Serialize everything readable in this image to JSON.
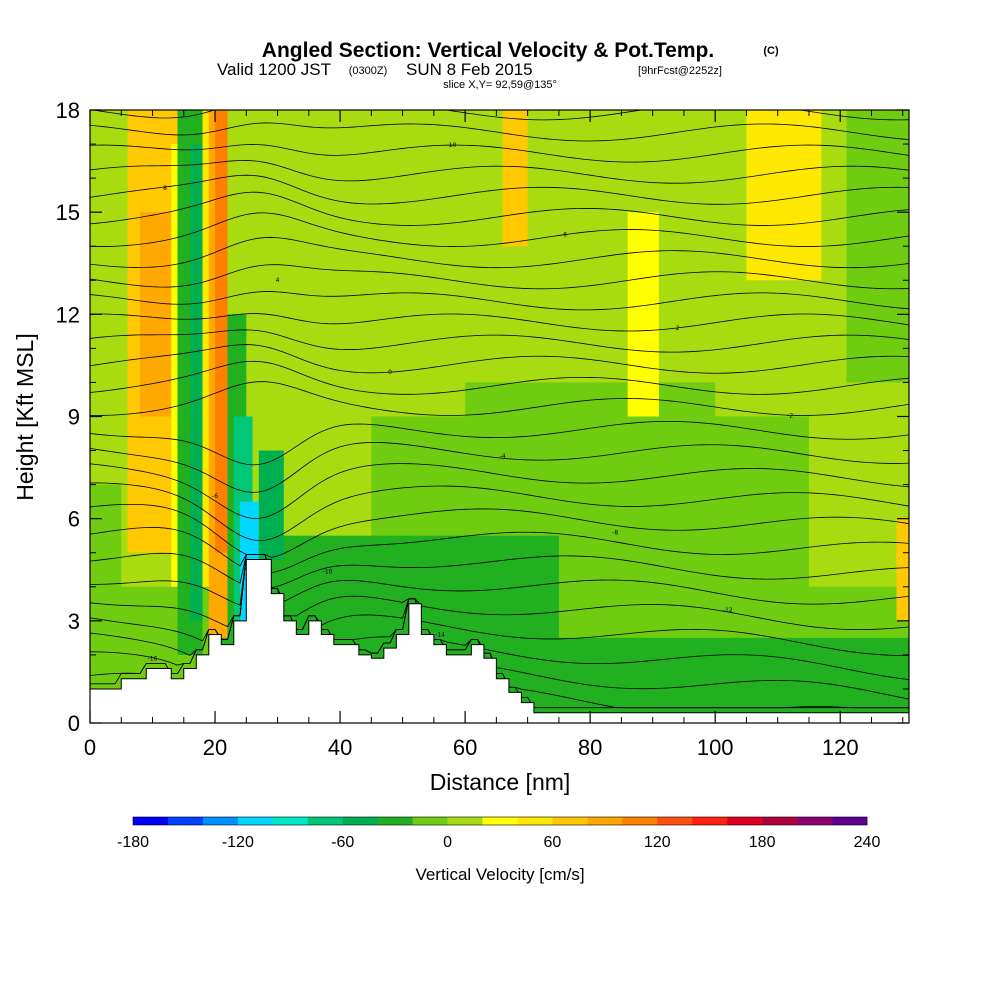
{
  "header": {
    "title": "Angled Section: Vertical Velocity & Pot.Temp.",
    "title_unit": "(C)",
    "valid_prefix": "Valid 1200 JST",
    "valid_utc": "(0300Z)",
    "valid_date": "SUN 8 Feb 2015",
    "forecast": "[9hrFcst@2252z]",
    "slice": "slice X,Y= 92,59@135°"
  },
  "chart_data": {
    "type": "heatmap",
    "xlabel": "Distance [nm]",
    "ylabel": "Height [Kft MSL]",
    "xlim": [
      0,
      131
    ],
    "ylim": [
      0,
      18
    ],
    "xticks": [
      0,
      20,
      40,
      60,
      80,
      100,
      120
    ],
    "xtick_labels": [
      "0",
      "20",
      "40",
      "60",
      "80",
      "100",
      "120"
    ],
    "yticks": [
      0,
      3,
      6,
      9,
      12,
      15,
      18
    ],
    "ytick_labels": [
      "0",
      "3",
      "6",
      "9",
      "12",
      "15",
      "18"
    ],
    "grid": false,
    "colorbar": {
      "title": "Vertical Velocity [cm/s]",
      "min": -180,
      "max": 240,
      "step": 20,
      "tick_values": [
        -180,
        -120,
        -60,
        0,
        60,
        120,
        180,
        240
      ],
      "tick_labels": [
        "-180",
        "-120",
        "-60",
        "0",
        "60",
        "120",
        "180",
        "240"
      ],
      "colors": [
        "#0000ff",
        "#0040ff",
        "#0090ff",
        "#00d8ff",
        "#00e8c8",
        "#00c878",
        "#00b050",
        "#20b020",
        "#70cc10",
        "#a8dc10",
        "#ffff00",
        "#ffe800",
        "#ffc800",
        "#ffa800",
        "#ff8000",
        "#ff5010",
        "#ff2010",
        "#e00020",
        "#b00040",
        "#8c0070",
        "#600090"
      ]
    },
    "terrain_profile": {
      "distance": [
        0,
        5,
        5,
        9,
        9,
        13,
        13,
        15,
        15,
        17,
        17,
        19,
        19,
        21,
        21,
        23,
        23,
        25,
        25,
        27,
        27,
        29,
        29,
        31,
        31,
        33,
        33,
        35,
        35,
        37,
        37,
        39,
        39,
        41,
        41,
        43,
        43,
        45,
        45,
        47,
        47,
        49,
        49,
        51,
        51,
        53,
        53,
        55,
        55,
        57,
        57,
        59,
        59,
        61,
        61,
        63,
        63,
        65,
        65,
        67,
        67,
        69,
        69,
        71,
        71,
        131
      ],
      "height_kft": [
        1.0,
        1.0,
        1.3,
        1.3,
        1.6,
        1.6,
        1.3,
        1.3,
        1.6,
        1.6,
        2.0,
        2.0,
        2.6,
        2.6,
        2.3,
        2.3,
        3.0,
        3.0,
        4.8,
        4.8,
        4.8,
        4.8,
        3.8,
        3.8,
        3.0,
        3.0,
        2.6,
        2.6,
        3.0,
        3.0,
        2.6,
        2.6,
        2.3,
        2.3,
        2.3,
        2.3,
        2.0,
        2.0,
        1.9,
        1.9,
        2.2,
        2.2,
        2.6,
        2.6,
        3.5,
        3.5,
        2.6,
        2.6,
        2.3,
        2.3,
        2.0,
        2.0,
        2.0,
        2.0,
        2.3,
        2.3,
        1.9,
        1.9,
        1.3,
        1.3,
        0.9,
        0.9,
        0.6,
        0.6,
        0.3,
        0.3
      ]
    },
    "vertical_velocity_cells": [
      {
        "x": [
          0,
          131
        ],
        "y": [
          0,
          18
        ],
        "value": 10
      },
      {
        "x": [
          0,
          131
        ],
        "y": [
          0,
          4
        ],
        "value": -10
      },
      {
        "x": [
          45,
          115
        ],
        "y": [
          0,
          9
        ],
        "value": -10
      },
      {
        "x": [
          60,
          100
        ],
        "y": [
          0,
          10
        ],
        "value": -10
      },
      {
        "x": [
          0,
          5
        ],
        "y": [
          0,
          7
        ],
        "value": -10
      },
      {
        "x": [
          20,
          75
        ],
        "y": [
          1.5,
          5.5
        ],
        "value": -30
      },
      {
        "x": [
          65,
          131
        ],
        "y": [
          0,
          2.5
        ],
        "value": -30
      },
      {
        "x": [
          6,
          14
        ],
        "y": [
          5,
          18
        ],
        "value": 60
      },
      {
        "x": [
          8,
          13
        ],
        "y": [
          9,
          15
        ],
        "value": 90
      },
      {
        "x": [
          13,
          16
        ],
        "y": [
          4,
          17
        ],
        "value": 30
      },
      {
        "x": [
          14,
          18
        ],
        "y": [
          2,
          18
        ],
        "value": -30
      },
      {
        "x": [
          16,
          18
        ],
        "y": [
          3,
          17
        ],
        "value": -50
      },
      {
        "x": [
          18,
          20
        ],
        "y": [
          4,
          18
        ],
        "value": 40
      },
      {
        "x": [
          19,
          22
        ],
        "y": [
          2.5,
          18
        ],
        "value": 90
      },
      {
        "x": [
          20,
          22
        ],
        "y": [
          5,
          18
        ],
        "value": 110
      },
      {
        "x": [
          22,
          25
        ],
        "y": [
          3,
          12
        ],
        "value": -30
      },
      {
        "x": [
          23,
          26
        ],
        "y": [
          3,
          9
        ],
        "value": -70
      },
      {
        "x": [
          24,
          27
        ],
        "y": [
          3,
          6.5
        ],
        "value": -110
      },
      {
        "x": [
          25,
          27
        ],
        "y": [
          3.2,
          4.8
        ],
        "value": -150
      },
      {
        "x": [
          27,
          31
        ],
        "y": [
          4.8,
          8
        ],
        "value": -50
      },
      {
        "x": [
          66,
          70
        ],
        "y": [
          14,
          18
        ],
        "value": 60
      },
      {
        "x": [
          105,
          117
        ],
        "y": [
          13,
          18
        ],
        "value": 40
      },
      {
        "x": [
          86,
          91
        ],
        "y": [
          9,
          15
        ],
        "value": 30
      },
      {
        "x": [
          121,
          131
        ],
        "y": [
          10,
          18
        ],
        "value": -10
      },
      {
        "x": [
          129,
          131
        ],
        "y": [
          3,
          6
        ],
        "value": 60
      }
    ],
    "pot_temp_contours": {
      "label_values": [
        -16,
        -14,
        -12,
        -10,
        -8,
        -6,
        -4,
        -2,
        0,
        2,
        4,
        6,
        8,
        10,
        12,
        14,
        16,
        18,
        20,
        22,
        24,
        26,
        28,
        30,
        32
      ]
    }
  }
}
